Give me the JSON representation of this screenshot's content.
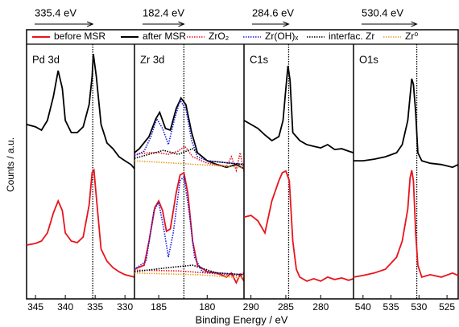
{
  "y_label": "Counts / a.u.",
  "x_label": "Binding Energy / eV",
  "chart_data": [
    {
      "type": "line",
      "title": "Pd 3d",
      "reference": 335.4,
      "reference_label": "335.4 eV",
      "xlim": [
        346.5,
        328.4
      ],
      "xticks": [
        345,
        340,
        335,
        330
      ],
      "ylim": [
        0,
        100
      ],
      "series": [
        {
          "name": "before MSR",
          "color": "#e8141c",
          "dash": "solid",
          "x": [
            346.5,
            345,
            344,
            343,
            342,
            341.2,
            340.5,
            340,
            339,
            338,
            337,
            336,
            335.5,
            335.2,
            334.8,
            334,
            333,
            332,
            331,
            330,
            328.4
          ],
          "values": [
            20.0,
            20.6,
            21.5,
            24.5,
            31.9,
            36.4,
            32.8,
            24.5,
            21.5,
            20.9,
            23.0,
            34.9,
            46.9,
            47.8,
            37.9,
            18.5,
            14.0,
            11.6,
            10.1,
            9.0,
            8.1
          ]
        },
        {
          "name": "after MSR",
          "color": "#000000",
          "dash": "solid",
          "x": [
            346.5,
            345,
            344,
            343,
            342,
            341.2,
            340.5,
            340,
            339,
            338,
            337,
            336,
            335.5,
            335.3,
            334.8,
            334,
            333,
            332,
            331,
            330,
            329,
            328.4
          ],
          "values": [
            64.8,
            63.9,
            62.7,
            66.3,
            75.2,
            84.8,
            78.2,
            66.3,
            61.8,
            61.8,
            63.9,
            72.2,
            82.7,
            91.0,
            82.7,
            64.8,
            57.9,
            55.8,
            52.8,
            51.3,
            49.9,
            48.4
          ]
        }
      ]
    },
    {
      "type": "line",
      "title": "Zr 3d",
      "reference": 182.4,
      "reference_label": "182.4 eV",
      "xlim": [
        187.5,
        176.2
      ],
      "xticks": [
        185,
        180
      ],
      "ylim": [
        0,
        100
      ],
      "series": [
        {
          "name": "before MSR",
          "color": "#e8141c",
          "dash": "solid",
          "x": [
            187.5,
            186.5,
            186,
            185.4,
            185,
            184.6,
            184.2,
            183.8,
            183.2,
            182.8,
            182.4,
            182,
            181.5,
            181,
            180,
            179,
            178,
            177.5,
            177,
            176.6,
            176.2
          ],
          "values": [
            11.0,
            12.5,
            21.5,
            34.0,
            36.4,
            32.8,
            25.1,
            26.0,
            39.4,
            46.0,
            46.9,
            39.4,
            21.5,
            12.5,
            10.1,
            9.6,
            8.1,
            9.6,
            6.0,
            9.0,
            6.6
          ]
        },
        {
          "name": "after MSR",
          "color": "#000000",
          "dash": "solid",
          "x": [
            187.5,
            187,
            186,
            185.3,
            184.9,
            184.3,
            183.8,
            183.2,
            182.7,
            182.2,
            181.6,
            181,
            180,
            179,
            178,
            177,
            176.2
          ],
          "values": [
            54.3,
            55.8,
            60.3,
            66.9,
            69.3,
            63.3,
            62.7,
            70.7,
            74.6,
            72.2,
            61.8,
            54.3,
            51.3,
            49.9,
            48.9,
            49.9,
            48.4
          ]
        },
        {
          "name": "ZrO₂",
          "color": "#e8141c",
          "dash": "dotted",
          "x": [
            187.5,
            186,
            185,
            184,
            183,
            182.3,
            181.5,
            180,
            178,
            177.5,
            177,
            176.6,
            176.2
          ],
          "values": [
            53.7,
            54.3,
            54.3,
            53.7,
            54.9,
            56.7,
            52.8,
            50.4,
            49.3,
            52.8,
            47.8,
            54.3,
            47.2
          ]
        },
        {
          "name": "Zr(OH)ₓ",
          "color": "#1a1adc",
          "dash": "dotted",
          "x": [
            187.5,
            186.5,
            185.8,
            185.2,
            184.6,
            184,
            183.4,
            182.8,
            182.2,
            181.6,
            181,
            180,
            176.2
          ],
          "values": [
            53.1,
            54.9,
            60.3,
            66.9,
            63.3,
            57.3,
            66.3,
            73.7,
            70.7,
            58.8,
            52.8,
            51.3,
            49.9
          ]
        },
        {
          "name": "interfac. Zr",
          "color": "#000000",
          "dash": "dotted",
          "x": [
            187.5,
            184.5,
            183,
            181.5,
            180,
            176.2
          ],
          "values": [
            52.2,
            55.2,
            53.7,
            55.8,
            51.3,
            49.9
          ]
        },
        {
          "name": "Zr⁰",
          "color": "#e8a020",
          "dash": "dotted",
          "x": [
            187.5,
            181,
            176.2
          ],
          "values": [
            51.3,
            49.9,
            48.9
          ]
        },
        {
          "color": "#e8141c",
          "dash": "dotted",
          "x": [
            187.5,
            183,
            180,
            177,
            176.2
          ],
          "values": [
            10.7,
            10.4,
            9.6,
            8.7,
            9.6
          ]
        },
        {
          "color": "#1a1adc",
          "dash": "dotted",
          "x": [
            187.5,
            186.3,
            185.5,
            185,
            184.4,
            184,
            183.5,
            182.8,
            182.4,
            181.9,
            181.3,
            180.5,
            176.2
          ],
          "values": [
            11.0,
            14.0,
            32.8,
            35.8,
            24.5,
            15.5,
            24.5,
            43.9,
            45.4,
            33.4,
            15.5,
            10.1,
            9.0
          ]
        },
        {
          "color": "#000000",
          "dash": "dotted",
          "x": [
            187.5,
            184,
            181.5,
            179,
            176.2
          ],
          "values": [
            10.1,
            11.6,
            12.5,
            9.6,
            9.0
          ]
        },
        {
          "color": "#e8a020",
          "dash": "dotted",
          "x": [
            187.5,
            181,
            176.2
          ],
          "values": [
            9.6,
            9.0,
            7.8
          ]
        }
      ]
    },
    {
      "type": "line",
      "title": "C1s",
      "reference": 284.6,
      "reference_label": "284.6 eV",
      "xlim": [
        291,
        275.3
      ],
      "xticks": [
        290,
        285,
        280
      ],
      "ylim": [
        0,
        100
      ],
      "series": [
        {
          "name": "before MSR",
          "color": "#e8141c",
          "dash": "solid",
          "x": [
            291,
            290,
            289,
            288,
            287,
            286,
            285.5,
            285,
            284.5,
            284,
            283.5,
            283,
            282,
            281,
            280,
            279,
            278,
            277,
            276,
            275.3
          ],
          "values": [
            30.4,
            31.0,
            29.0,
            24.5,
            36.4,
            43.9,
            46.9,
            47.5,
            43.9,
            21.5,
            11.0,
            8.1,
            6.6,
            7.5,
            6.6,
            8.1,
            7.2,
            7.8,
            6.9,
            7.5
          ]
        },
        {
          "name": "after MSR",
          "color": "#000000",
          "dash": "solid",
          "x": [
            291,
            290,
            289,
            288,
            287,
            286,
            285.4,
            285,
            284.7,
            284.4,
            284,
            283,
            282,
            281,
            280,
            279,
            278,
            277,
            276,
            275.3
          ],
          "values": [
            66.3,
            64.8,
            63.3,
            60.9,
            58.8,
            60.3,
            66.3,
            78.2,
            86.6,
            81.2,
            61.8,
            58.8,
            57.3,
            56.7,
            56.1,
            57.3,
            55.5,
            55.8,
            54.9,
            54.3
          ]
        }
      ]
    },
    {
      "type": "line",
      "title": "O1s",
      "reference": 530.4,
      "reference_label": "530.4 eV",
      "xlim": [
        541.7,
        523
      ],
      "xticks": [
        540,
        535,
        530,
        525
      ],
      "ylim": [
        0,
        100
      ],
      "series": [
        {
          "name": "before MSR",
          "color": "#e8141c",
          "dash": "solid",
          "x": [
            541.7,
            540,
            538,
            536,
            534,
            533,
            532,
            531.6,
            531.3,
            531,
            530.6,
            530.2,
            529.5,
            528,
            526,
            524,
            523
          ],
          "values": [
            8.1,
            8.7,
            9.6,
            11.0,
            15.5,
            21.5,
            33.4,
            44.8,
            47.8,
            43.9,
            24.5,
            12.5,
            8.1,
            9.0,
            8.1,
            9.6,
            8.7
          ]
        },
        {
          "name": "after MSR",
          "color": "#000000",
          "dash": "solid",
          "x": [
            541.7,
            540,
            538,
            536,
            534,
            533,
            532,
            531.6,
            531.3,
            531,
            530.6,
            530.2,
            529.5,
            528,
            526,
            524,
            523
          ],
          "values": [
            51.3,
            51.3,
            51.9,
            52.8,
            54.3,
            57.3,
            66.3,
            75.2,
            81.8,
            79.7,
            69.3,
            54.3,
            51.3,
            50.4,
            49.9,
            48.9,
            49.9
          ]
        }
      ]
    }
  ]
}
